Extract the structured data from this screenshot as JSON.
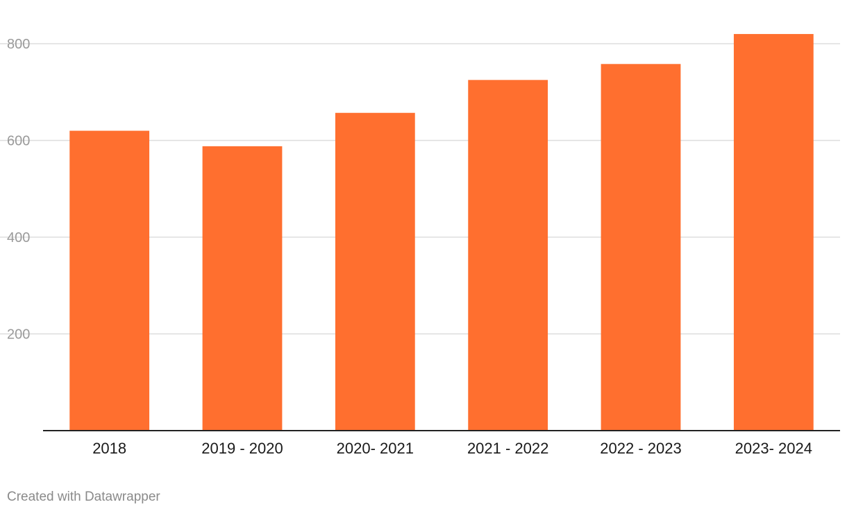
{
  "chart_data": {
    "type": "bar",
    "categories": [
      "2018",
      "2019 - 2020",
      "2020- 2021",
      "2021 - 2022",
      "2022 - 2023",
      "2023- 2024"
    ],
    "values": [
      620,
      588,
      657,
      725,
      758,
      820
    ],
    "ylim": [
      0,
      800
    ],
    "yticks": [
      200,
      400,
      600,
      800
    ],
    "grid": true,
    "colors": {
      "bar": "#ff6f2f",
      "grid": "#dddddd",
      "axis": "#222222",
      "ytick_text": "#9a9a9a",
      "xtick_text": "#1a1a1a"
    }
  },
  "footer": {
    "credit": "Created with Datawrapper"
  }
}
